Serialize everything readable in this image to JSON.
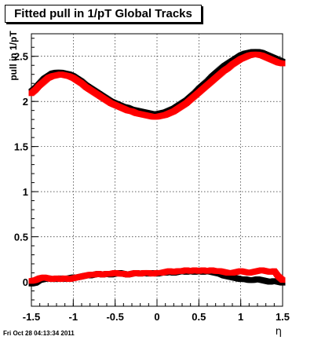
{
  "chart_data": {
    "type": "scatter",
    "title": "Fitted pull in 1/pT  Global Tracks",
    "xlabel": "η",
    "ylabel": "pull in 1/pT",
    "xlim": [
      -1.5,
      1.5
    ],
    "ylim": [
      -0.27,
      2.75
    ],
    "grid": true,
    "x_ticks": [
      "-1.5",
      "-1",
      "-0.5",
      "0",
      "0.5",
      "1",
      "1.5"
    ],
    "y_ticks": [
      "0",
      "0.5",
      "1",
      "1.5",
      "2",
      "2.5"
    ],
    "colors": {
      "series1": "#000000",
      "series2": "#ff0000"
    },
    "series": [
      {
        "color": "#000000",
        "x": [
          -1.5,
          -1.45,
          -1.4,
          -1.35,
          -1.3,
          -1.25,
          -1.2,
          -1.15,
          -1.1,
          -1.05,
          -1.0,
          -0.95,
          -0.9,
          -0.85,
          -0.8,
          -0.75,
          -0.7,
          -0.65,
          -0.6,
          -0.55,
          -0.5,
          -0.45,
          -0.4,
          -0.35,
          -0.3,
          -0.25,
          -0.2,
          -0.15,
          -0.1,
          -0.05,
          0.0,
          0.05,
          0.1,
          0.15,
          0.2,
          0.25,
          0.3,
          0.35,
          0.4,
          0.45,
          0.5,
          0.55,
          0.6,
          0.65,
          0.7,
          0.75,
          0.8,
          0.85,
          0.9,
          0.95,
          1.0,
          1.05,
          1.1,
          1.15,
          1.2,
          1.25,
          1.3,
          1.35,
          1.4,
          1.45,
          1.5
        ],
        "y": [
          2.11,
          2.15,
          2.2,
          2.25,
          2.28,
          2.31,
          2.32,
          2.32,
          2.31,
          2.3,
          2.28,
          2.25,
          2.22,
          2.18,
          2.15,
          2.12,
          2.09,
          2.06,
          2.03,
          2.0,
          1.98,
          1.96,
          1.94,
          1.93,
          1.91,
          1.9,
          1.89,
          1.88,
          1.87,
          1.86,
          1.86,
          1.87,
          1.88,
          1.9,
          1.92,
          1.95,
          1.98,
          2.01,
          2.05,
          2.09,
          2.14,
          2.18,
          2.22,
          2.27,
          2.31,
          2.35,
          2.39,
          2.42,
          2.45,
          2.48,
          2.51,
          2.53,
          2.54,
          2.55,
          2.55,
          2.54,
          2.52,
          2.5,
          2.48,
          2.46,
          2.44
        ]
      },
      {
        "color": "#ff0000",
        "x": [
          -1.5,
          -1.45,
          -1.4,
          -1.35,
          -1.3,
          -1.25,
          -1.2,
          -1.15,
          -1.1,
          -1.05,
          -1.0,
          -0.95,
          -0.9,
          -0.85,
          -0.8,
          -0.75,
          -0.7,
          -0.65,
          -0.6,
          -0.55,
          -0.5,
          -0.45,
          -0.4,
          -0.35,
          -0.3,
          -0.25,
          -0.2,
          -0.15,
          -0.1,
          -0.05,
          0.0,
          0.05,
          0.1,
          0.15,
          0.2,
          0.25,
          0.3,
          0.35,
          0.4,
          0.45,
          0.5,
          0.55,
          0.6,
          0.65,
          0.7,
          0.75,
          0.8,
          0.85,
          0.9,
          0.95,
          1.0,
          1.05,
          1.1,
          1.15,
          1.2,
          1.25,
          1.3,
          1.35,
          1.4,
          1.45,
          1.5
        ],
        "y": [
          2.09,
          2.13,
          2.18,
          2.22,
          2.26,
          2.28,
          2.29,
          2.3,
          2.29,
          2.28,
          2.26,
          2.23,
          2.2,
          2.16,
          2.13,
          2.1,
          2.07,
          2.04,
          2.01,
          1.98,
          1.96,
          1.94,
          1.92,
          1.9,
          1.89,
          1.87,
          1.86,
          1.85,
          1.84,
          1.83,
          1.83,
          1.84,
          1.85,
          1.87,
          1.89,
          1.92,
          1.95,
          1.98,
          2.02,
          2.06,
          2.1,
          2.14,
          2.18,
          2.22,
          2.26,
          2.3,
          2.34,
          2.37,
          2.41,
          2.44,
          2.47,
          2.49,
          2.51,
          2.52,
          2.52,
          2.51,
          2.49,
          2.47,
          2.45,
          2.43,
          2.42
        ]
      },
      {
        "color": "#000000",
        "x": [
          -1.5,
          -1.45,
          -1.4,
          -1.35,
          -1.3,
          -1.25,
          -1.2,
          -1.15,
          -1.1,
          -1.05,
          -1.0,
          -0.95,
          -0.9,
          -0.85,
          -0.8,
          -0.75,
          -0.7,
          -0.65,
          -0.6,
          -0.55,
          -0.5,
          -0.45,
          -0.4,
          -0.35,
          -0.3,
          -0.25,
          -0.2,
          -0.15,
          -0.1,
          -0.05,
          0.0,
          0.05,
          0.1,
          0.15,
          0.2,
          0.25,
          0.3,
          0.35,
          0.4,
          0.45,
          0.5,
          0.55,
          0.6,
          0.65,
          0.7,
          0.75,
          0.8,
          0.85,
          0.9,
          0.95,
          1.0,
          1.05,
          1.1,
          1.15,
          1.2,
          1.25,
          1.3,
          1.35,
          1.4,
          1.45,
          1.5
        ],
        "y": [
          -0.02,
          -0.01,
          0.02,
          0.03,
          0.04,
          0.03,
          0.03,
          0.04,
          0.03,
          0.04,
          0.05,
          0.05,
          0.06,
          0.07,
          0.07,
          0.08,
          0.09,
          0.08,
          0.09,
          0.08,
          0.09,
          0.1,
          0.09,
          0.08,
          0.09,
          0.1,
          0.09,
          0.1,
          0.09,
          0.1,
          0.09,
          0.1,
          0.1,
          0.11,
          0.1,
          0.11,
          0.12,
          0.11,
          0.12,
          0.11,
          0.12,
          0.11,
          0.12,
          0.11,
          0.1,
          0.09,
          0.07,
          0.06,
          0.05,
          0.04,
          0.03,
          0.03,
          0.02,
          0.02,
          0.03,
          0.02,
          0.01,
          0.0,
          0.01,
          0.0,
          -0.01
        ]
      },
      {
        "color": "#ff0000",
        "x": [
          -1.5,
          -1.45,
          -1.4,
          -1.35,
          -1.3,
          -1.25,
          -1.2,
          -1.15,
          -1.1,
          -1.05,
          -1.0,
          -0.95,
          -0.9,
          -0.85,
          -0.8,
          -0.75,
          -0.7,
          -0.65,
          -0.6,
          -0.55,
          -0.5,
          -0.45,
          -0.4,
          -0.35,
          -0.3,
          -0.25,
          -0.2,
          -0.15,
          -0.1,
          -0.05,
          0.0,
          0.05,
          0.1,
          0.15,
          0.2,
          0.25,
          0.3,
          0.35,
          0.4,
          0.45,
          0.5,
          0.55,
          0.6,
          0.65,
          0.7,
          0.75,
          0.8,
          0.85,
          0.9,
          0.95,
          1.0,
          1.05,
          1.1,
          1.15,
          1.2,
          1.25,
          1.3,
          1.35,
          1.4,
          1.45,
          1.5
        ],
        "y": [
          0.01,
          0.02,
          0.04,
          0.05,
          0.04,
          0.03,
          0.04,
          0.03,
          0.04,
          0.03,
          0.04,
          0.05,
          0.06,
          0.07,
          0.08,
          0.08,
          0.09,
          0.08,
          0.09,
          0.09,
          0.1,
          0.09,
          0.09,
          0.08,
          0.09,
          0.1,
          0.09,
          0.1,
          0.1,
          0.09,
          0.1,
          0.1,
          0.11,
          0.12,
          0.11,
          0.12,
          0.12,
          0.13,
          0.12,
          0.13,
          0.12,
          0.13,
          0.12,
          0.13,
          0.12,
          0.12,
          0.11,
          0.1,
          0.1,
          0.11,
          0.12,
          0.11,
          0.1,
          0.11,
          0.12,
          0.13,
          0.12,
          0.11,
          0.12,
          0.06,
          0.02
        ]
      }
    ]
  },
  "footer": {
    "timestamp": "Fri Oct 28 04:13:34 2011"
  }
}
